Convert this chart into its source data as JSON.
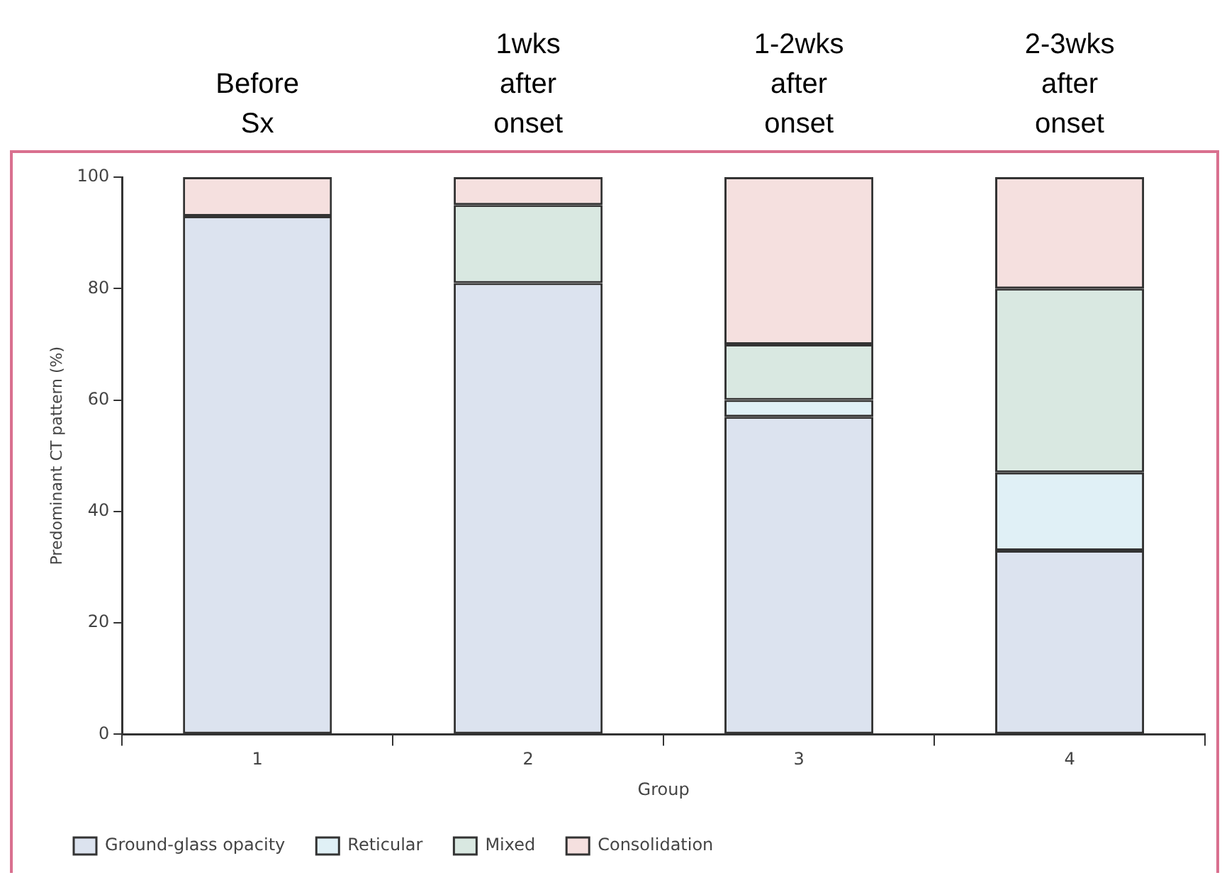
{
  "chart_data": {
    "type": "bar",
    "stacked": true,
    "xlabel": "Group",
    "ylabel": "Predominant CT pattern (%)",
    "categories": [
      "1",
      "2",
      "3",
      "4"
    ],
    "series": [
      {
        "name": "Ground-glass opacity",
        "color": "#dce3ef",
        "values": [
          93,
          81,
          57,
          33
        ]
      },
      {
        "name": "Reticular",
        "color": "#e0f0f6",
        "values": [
          0,
          0,
          3,
          14
        ]
      },
      {
        "name": "Mixed",
        "color": "#d9e8e1",
        "values": [
          0,
          14,
          10,
          33
        ]
      },
      {
        "name": "Consolidation",
        "color": "#f5e0df",
        "values": [
          7,
          5,
          30,
          20
        ]
      }
    ],
    "ylim": [
      0,
      100
    ],
    "yticks": [
      0,
      20,
      40,
      60,
      80,
      100
    ],
    "grid": false,
    "legend": "bottom",
    "annotations": [
      "Before Sx",
      "1wks after onset",
      "1-2wks after onset",
      "2-3wks after onset"
    ]
  }
}
